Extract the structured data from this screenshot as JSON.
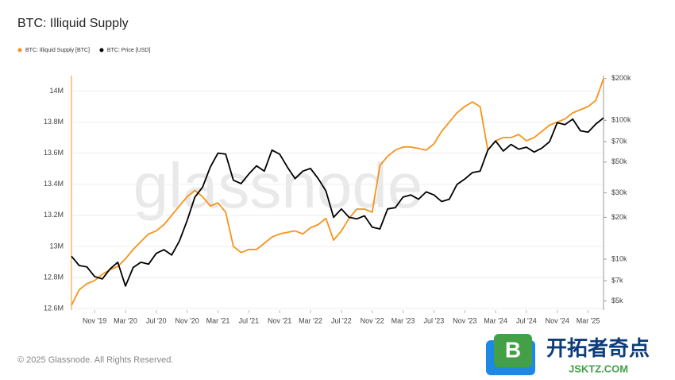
{
  "chart_data": {
    "type": "line",
    "title": "BTC: Illiquid Supply",
    "watermark": "glassnode",
    "footer": "© 2025 Glassnode. All Rights Reserved.",
    "badge": {
      "name": "开拓者奇点",
      "site": "JSKTZ.COM"
    },
    "x": [
      "2019-08",
      "2019-09",
      "2019-10",
      "2019-11",
      "2019-12",
      "2020-01",
      "2020-02",
      "2020-03",
      "2020-04",
      "2020-05",
      "2020-06",
      "2020-07",
      "2020-08",
      "2020-09",
      "2020-10",
      "2020-11",
      "2020-12",
      "2021-01",
      "2021-02",
      "2021-03",
      "2021-04",
      "2021-05",
      "2021-06",
      "2021-07",
      "2021-08",
      "2021-09",
      "2021-10",
      "2021-11",
      "2021-12",
      "2022-01",
      "2022-02",
      "2022-03",
      "2022-04",
      "2022-05",
      "2022-06",
      "2022-07",
      "2022-08",
      "2022-09",
      "2022-10",
      "2022-11",
      "2022-12",
      "2023-01",
      "2023-02",
      "2023-03",
      "2023-04",
      "2023-05",
      "2023-06",
      "2023-07",
      "2023-08",
      "2023-09",
      "2023-10",
      "2023-11",
      "2023-12",
      "2024-01",
      "2024-02",
      "2024-03",
      "2024-04",
      "2024-05",
      "2024-06",
      "2024-07",
      "2024-08",
      "2024-09",
      "2024-10",
      "2024-11",
      "2024-12",
      "2025-01",
      "2025-02",
      "2025-03",
      "2025-04",
      "2025-05"
    ],
    "xticks": [
      {
        "value": "2019-11",
        "label": "Nov '19"
      },
      {
        "value": "2020-03",
        "label": "Mar '20"
      },
      {
        "value": "2020-07",
        "label": "Jul '20"
      },
      {
        "value": "2020-11",
        "label": "Nov '20"
      },
      {
        "value": "2021-03",
        "label": "Mar '21"
      },
      {
        "value": "2021-07",
        "label": "Jul '21"
      },
      {
        "value": "2021-11",
        "label": "Nov '21"
      },
      {
        "value": "2022-03",
        "label": "Mar '22"
      },
      {
        "value": "2022-07",
        "label": "Jul '22"
      },
      {
        "value": "2022-11",
        "label": "Nov '22"
      },
      {
        "value": "2023-03",
        "label": "Mar '23"
      },
      {
        "value": "2023-07",
        "label": "Jul '23"
      },
      {
        "value": "2023-11",
        "label": "Nov '23"
      },
      {
        "value": "2024-03",
        "label": "Mar '24"
      },
      {
        "value": "2024-07",
        "label": "Jul '24"
      },
      {
        "value": "2024-11",
        "label": "Nov '24"
      },
      {
        "value": "2025-03",
        "label": "Mar '25"
      }
    ],
    "ylim": [
      12590000,
      14100000
    ],
    "yticks": [
      {
        "value": 12600000,
        "label": "12.6M"
      },
      {
        "value": 12800000,
        "label": "12.8M"
      },
      {
        "value": 13000000,
        "label": "13M"
      },
      {
        "value": 13200000,
        "label": "13.2M"
      },
      {
        "value": 13400000,
        "label": "13.4M"
      },
      {
        "value": 13600000,
        "label": "13.6M"
      },
      {
        "value": 13800000,
        "label": "13.8M"
      },
      {
        "value": 14000000,
        "label": "14M"
      }
    ],
    "y2lim": [
      4300,
      210000
    ],
    "y2log": true,
    "y2ticks": [
      {
        "value": 5000,
        "label": "$5k"
      },
      {
        "value": 7000,
        "label": "$7k"
      },
      {
        "value": 10000,
        "label": "$10k"
      },
      {
        "value": 20000,
        "label": "$20k"
      },
      {
        "value": 30000,
        "label": "$30k"
      },
      {
        "value": 50000,
        "label": "$50k"
      },
      {
        "value": 70000,
        "label": "$70k"
      },
      {
        "value": 100000,
        "label": "$100k"
      },
      {
        "value": 200000,
        "label": "$200k"
      }
    ],
    "grid": true,
    "legend": "top-left",
    "series": [
      {
        "name": "BTC: Illiquid Supply [BTC]",
        "color": "#f7931a",
        "values": [
          12620000,
          12720000,
          12760000,
          12780000,
          12820000,
          12850000,
          12870000,
          12920000,
          12980000,
          13030000,
          13080000,
          13100000,
          13140000,
          13200000,
          13260000,
          13320000,
          13360000,
          13320000,
          13260000,
          13280000,
          13220000,
          13000000,
          12960000,
          12980000,
          12980000,
          13020000,
          13060000,
          13080000,
          13090000,
          13100000,
          13080000,
          13120000,
          13140000,
          13180000,
          13040000,
          13100000,
          13180000,
          13240000,
          13240000,
          13220000,
          13520000,
          13580000,
          13620000,
          13640000,
          13640000,
          13630000,
          13620000,
          13660000,
          13740000,
          13800000,
          13860000,
          13900000,
          13930000,
          13900000,
          13620000,
          13680000,
          13700000,
          13700000,
          13720000,
          13680000,
          13700000,
          13740000,
          13780000,
          13800000,
          13820000,
          13860000,
          13880000,
          13900000,
          13940000,
          14080000
        ]
      },
      {
        "name": "BTC: Price [USD]",
        "color": "#000000",
        "axis": "y2",
        "values": [
          10500,
          9000,
          8800,
          7500,
          7200,
          8500,
          9500,
          6400,
          8700,
          9500,
          9200,
          11000,
          11700,
          10700,
          13500,
          19000,
          28000,
          33000,
          46000,
          58000,
          57000,
          37000,
          35000,
          41000,
          47000,
          43000,
          61000,
          57000,
          46000,
          38000,
          43000,
          45000,
          38000,
          31000,
          20000,
          23000,
          20000,
          19500,
          20500,
          17000,
          16500,
          23000,
          23500,
          28000,
          29000,
          27000,
          30500,
          29000,
          26000,
          27000,
          34500,
          37700,
          42000,
          43000,
          61000,
          71000,
          60000,
          67000,
          62000,
          64000,
          59000,
          63000,
          70000,
          96000,
          93000,
          102000,
          84000,
          82000,
          94000,
          104000
        ]
      }
    ]
  }
}
